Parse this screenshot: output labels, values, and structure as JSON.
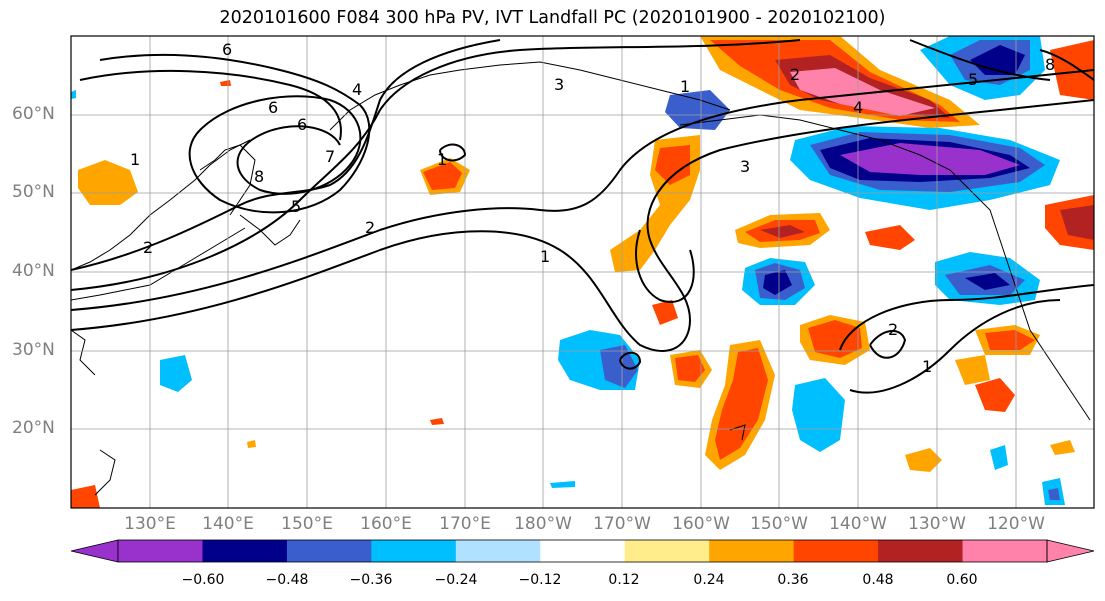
{
  "title": "2020101600 F084 300 hPa PV, IVT Landfall PC (2020101900 - 2020102100)",
  "lat_labels": [
    "60°N",
    "50°N",
    "40°N",
    "30°N",
    "20°N"
  ],
  "lon_labels": [
    "130°E",
    "140°E",
    "150°E",
    "160°E",
    "170°E",
    "180°W",
    "170°W",
    "160°W",
    "150°W",
    "140°W",
    "130°W",
    "120°W"
  ],
  "colorbar": {
    "ticks": [
      "−0.60",
      "−0.48",
      "−0.36",
      "−0.24",
      "−0.12",
      "0.12",
      "0.24",
      "0.36",
      "0.48",
      "0.60"
    ],
    "colors": [
      "#9932cc",
      "#00008b",
      "#3a5fcd",
      "#00bfff",
      "#b0e2ff",
      "#ffffff",
      "#ffec8b",
      "#ffa500",
      "#ff4500",
      "#b22222",
      "#ff82ab"
    ]
  },
  "contour_labels": [
    "6",
    "6",
    "4",
    "5",
    "6",
    "7",
    "8",
    "1",
    "1",
    "2",
    "3",
    "2",
    "1",
    "2",
    "1",
    "3",
    "4",
    "2",
    "1",
    "5",
    "8"
  ]
}
